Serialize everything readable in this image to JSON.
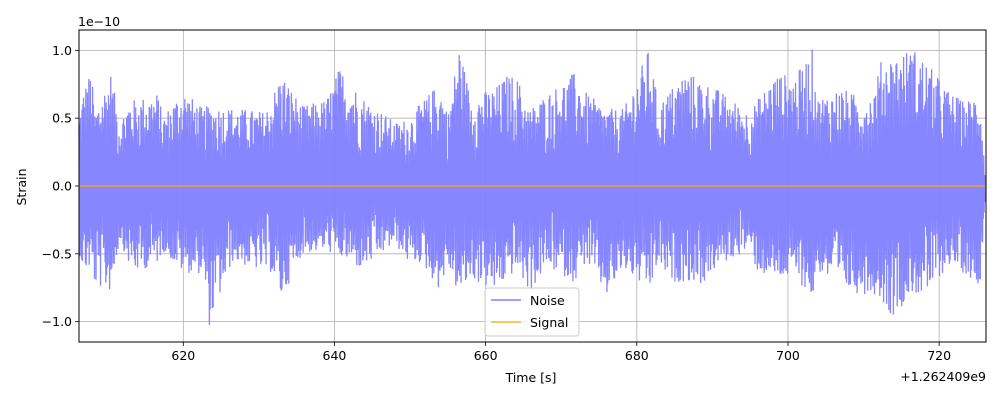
{
  "chart_data": {
    "type": "line",
    "title": "",
    "xlabel": "Time [s]",
    "ylabel": "Strain",
    "x_offset_label": "+1.262409e9",
    "y_scale_label": "1e−10",
    "xlim": [
      606.2,
      726.2
    ],
    "ylim": [
      -1.15,
      1.15
    ],
    "xticks": [
      620,
      640,
      660,
      680,
      700,
      720
    ],
    "xtick_labels": [
      "620",
      "640",
      "660",
      "680",
      "700",
      "720"
    ],
    "yticks": [
      -1.0,
      -0.5,
      0.0,
      0.5,
      1.0
    ],
    "ytick_labels": [
      "−1.0",
      "−0.5",
      "0.0",
      "0.5",
      "1.0"
    ],
    "grid": true,
    "legend_position": "bottom-center",
    "series": [
      {
        "name": "Noise",
        "color": "#8080ff",
        "x_range": [
          606.2,
          726.2
        ],
        "amplitude_range": [
          -1.04,
          1.05
        ],
        "x": [
          606.2,
          606.8,
          607.8,
          608.3,
          610.4,
          611.6,
          612.8,
          613.7,
          616.6,
          617.3,
          619.9,
          622.6,
          623.4,
          626.5,
          630.8,
          631.7,
          633.0,
          635.7,
          638.9,
          640.7,
          643.6,
          648.0,
          649.8,
          651.5,
          653.8,
          655.1,
          656.5,
          658.0,
          661.3,
          663.0,
          664.2,
          665.8,
          668.0,
          671.8,
          673.3,
          676.0,
          678.3,
          681.7,
          682.8,
          684.5,
          686.4,
          688.7,
          690.6,
          694.8,
          696.0,
          698.3,
          701.1,
          703.3,
          703.9,
          707.0,
          709.6,
          711.2,
          712.4,
          713.7,
          716.6,
          718.1,
          721.3,
          723.4,
          725.4,
          726.2
        ],
        "max": [
          0.53,
          0.72,
          0.86,
          0.56,
          0.84,
          0.48,
          0.64,
          0.64,
          0.69,
          0.52,
          0.72,
          0.57,
          0.6,
          0.58,
          0.55,
          0.66,
          0.84,
          0.59,
          0.64,
          0.88,
          0.67,
          0.47,
          0.5,
          0.62,
          0.76,
          0.55,
          1.05,
          0.66,
          0.73,
          0.83,
          0.8,
          0.57,
          0.68,
          0.84,
          0.69,
          0.57,
          0.57,
          1.03,
          0.6,
          0.72,
          0.85,
          0.78,
          0.72,
          0.55,
          0.64,
          0.83,
          0.82,
          1.02,
          0.65,
          0.73,
          0.65,
          0.68,
          0.94,
          0.96,
          1.02,
          0.93,
          0.7,
          0.62,
          0.7,
          0.02
        ],
        "min": [
          -0.48,
          -0.64,
          -0.61,
          -0.74,
          -0.78,
          -0.4,
          -0.58,
          -0.64,
          -0.57,
          -0.48,
          -0.64,
          -0.65,
          -1.04,
          -0.56,
          -0.64,
          -0.64,
          -0.84,
          -0.5,
          -0.48,
          -0.53,
          -0.62,
          -0.43,
          -0.57,
          -0.57,
          -0.76,
          -0.61,
          -0.82,
          -0.69,
          -0.78,
          -0.68,
          -0.62,
          -0.8,
          -0.6,
          -0.71,
          -0.56,
          -0.82,
          -0.62,
          -0.79,
          -0.57,
          -0.72,
          -0.7,
          -0.73,
          -0.6,
          -0.47,
          -0.64,
          -0.69,
          -0.68,
          -0.84,
          -0.63,
          -0.76,
          -0.8,
          -0.79,
          -0.84,
          -0.97,
          -0.79,
          -0.83,
          -0.58,
          -0.65,
          -0.74,
          0.0
        ]
      },
      {
        "name": "Signal",
        "color": "#ffa500",
        "x": [
          606.2,
          726.2
        ],
        "values": [
          0.0,
          0.0
        ]
      }
    ]
  }
}
